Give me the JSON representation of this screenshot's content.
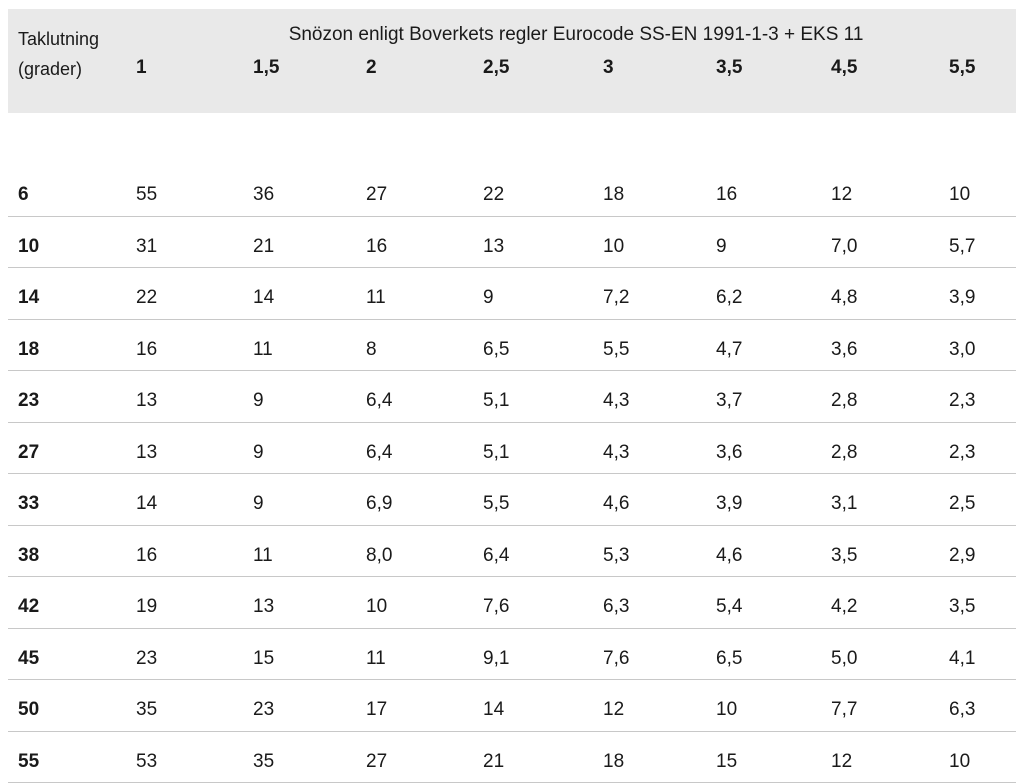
{
  "table": {
    "corner_label_line1": "Taklutning",
    "corner_label_line2": "(grader)",
    "zone_title": "Snözon enligt Boverkets regler Eurocode SS-EN 1991-1-3 + EKS 11",
    "zones": [
      "1",
      "1,5",
      "2",
      "2,5",
      "3",
      "3,5",
      "4,5",
      "5,5"
    ],
    "rows": [
      {
        "angle": "6",
        "values": [
          "55",
          "36",
          "27",
          "22",
          "18",
          "16",
          "12",
          "10"
        ]
      },
      {
        "angle": "10",
        "values": [
          "31",
          "21",
          "16",
          "13",
          "10",
          "9",
          "7,0",
          "5,7"
        ]
      },
      {
        "angle": "14",
        "values": [
          "22",
          "14",
          "11",
          "9",
          "7,2",
          "6,2",
          "4,8",
          "3,9"
        ]
      },
      {
        "angle": "18",
        "values": [
          "16",
          "11",
          "8",
          "6,5",
          "5,5",
          "4,7",
          "3,6",
          "3,0"
        ]
      },
      {
        "angle": "23",
        "values": [
          "13",
          "9",
          "6,4",
          "5,1",
          "4,3",
          "3,7",
          "2,8",
          "2,3"
        ]
      },
      {
        "angle": "27",
        "values": [
          "13",
          "9",
          "6,4",
          "5,1",
          "4,3",
          "3,6",
          "2,8",
          "2,3"
        ]
      },
      {
        "angle": "33",
        "values": [
          "14",
          "9",
          "6,9",
          "5,5",
          "4,6",
          "3,9",
          "3,1",
          "2,5"
        ]
      },
      {
        "angle": "38",
        "values": [
          "16",
          "11",
          "8,0",
          "6,4",
          "5,3",
          "4,6",
          "3,5",
          "2,9"
        ]
      },
      {
        "angle": "42",
        "values": [
          "19",
          "13",
          "10",
          "7,6",
          "6,3",
          "5,4",
          "4,2",
          "3,5"
        ]
      },
      {
        "angle": "45",
        "values": [
          "23",
          "15",
          "11",
          "9,1",
          "7,6",
          "6,5",
          "5,0",
          "4,1"
        ]
      },
      {
        "angle": "50",
        "values": [
          "35",
          "23",
          "17",
          "14",
          "12",
          "10",
          "7,7",
          "6,3"
        ]
      },
      {
        "angle": "55",
        "values": [
          "53",
          "35",
          "27",
          "21",
          "18",
          "15",
          "12",
          "10"
        ]
      }
    ]
  }
}
